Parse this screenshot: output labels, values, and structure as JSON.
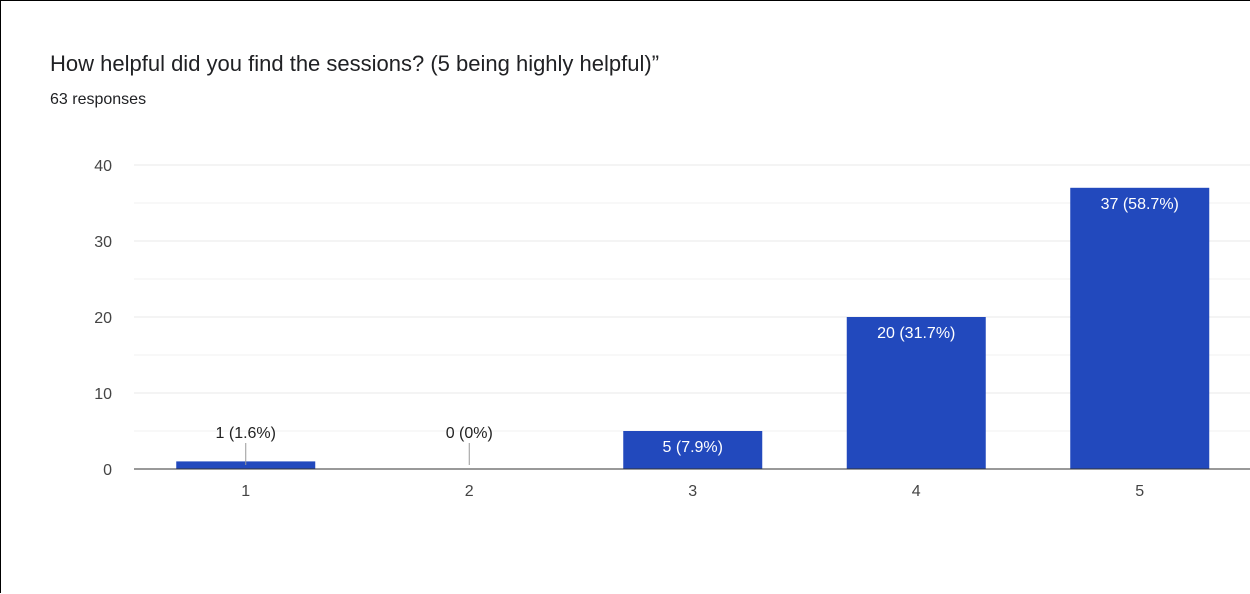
{
  "question": {
    "title": "How helpful did you find the sessions? (5 being highly helpful)”",
    "responses": "63 responses"
  },
  "colors": {
    "bar": "#2249bd",
    "gridline": "#e8e8e8",
    "gridline_minor": "#f1f1f1",
    "axis_line": "#333333",
    "text": "#202124",
    "tick_text": "#444444",
    "label_inside": "#ffffff",
    "label_outside": "#222222",
    "leader_line": "#999999"
  },
  "chart_data": {
    "type": "bar",
    "categories": [
      "1",
      "2",
      "3",
      "4",
      "5"
    ],
    "values": [
      1,
      0,
      5,
      20,
      37
    ],
    "data_labels": [
      "1 (1.6%)",
      "0 (0%)",
      "5 (7.9%)",
      "20 (31.7%)",
      "37 (58.7%)"
    ],
    "y_ticks": [
      "0",
      "10",
      "20",
      "30",
      "40"
    ],
    "ylim": [
      0,
      40
    ],
    "title": "How helpful did you find the sessions? (5 being highly helpful)”",
    "xlabel": "",
    "ylabel": "",
    "grid": true,
    "legend": "none"
  }
}
